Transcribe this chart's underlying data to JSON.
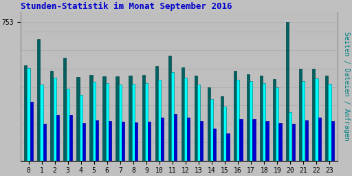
{
  "title": "Stunden-Statistik im Monat September 2016",
  "ylabel_right": "Seiten / Dateien / Anfragen",
  "ytick_label": "753",
  "background_color": "#c0c0c0",
  "plot_bg_color": "#bebebe",
  "title_color": "#0000cc",
  "ylabel_right_color": "#008080",
  "hours": [
    0,
    1,
    2,
    3,
    4,
    5,
    6,
    7,
    8,
    9,
    10,
    11,
    12,
    13,
    14,
    15,
    16,
    17,
    18,
    19,
    20,
    21,
    22,
    23
  ],
  "teal": [
    520,
    660,
    490,
    560,
    455,
    465,
    458,
    458,
    462,
    465,
    515,
    572,
    508,
    462,
    400,
    350,
    490,
    468,
    462,
    442,
    753,
    498,
    500,
    462
  ],
  "cyan": [
    505,
    415,
    450,
    390,
    358,
    428,
    422,
    415,
    418,
    422,
    440,
    482,
    452,
    415,
    335,
    292,
    440,
    432,
    420,
    397,
    265,
    432,
    447,
    418
  ],
  "blue": [
    320,
    200,
    248,
    248,
    205,
    218,
    215,
    212,
    208,
    212,
    232,
    252,
    235,
    215,
    175,
    148,
    228,
    225,
    215,
    205,
    200,
    220,
    235,
    215
  ],
  "xlim": [
    -0.6,
    23.6
  ],
  "ylim": [
    0,
    810
  ],
  "yticks": [
    753
  ]
}
